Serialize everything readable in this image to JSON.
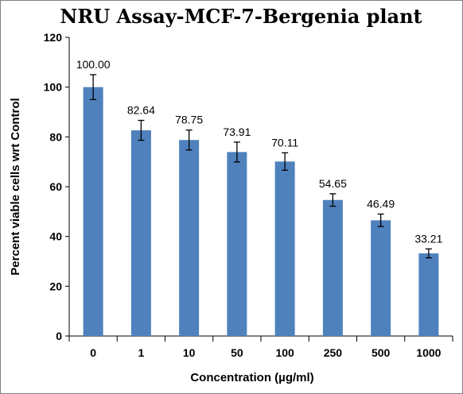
{
  "chart_data": {
    "type": "bar",
    "title": "NRU Assay-MCF-7-Bergenia plant",
    "xlabel": "Concentration (µg/ml)",
    "ylabel": "Percent viable cells wrt Control",
    "categories": [
      "0",
      "1",
      "10",
      "50",
      "100",
      "250",
      "500",
      "1000"
    ],
    "values": [
      100.0,
      82.64,
      78.75,
      73.91,
      70.11,
      54.65,
      46.49,
      33.21
    ],
    "data_labels": [
      "100.00",
      "82.64",
      "78.75",
      "73.91",
      "70.11",
      "54.65",
      "46.49",
      "33.21"
    ],
    "error": [
      5.0,
      4.0,
      4.0,
      4.0,
      3.5,
      2.5,
      2.5,
      1.8
    ],
    "ylim": [
      0,
      120
    ],
    "yticks": [
      0,
      20,
      40,
      60,
      80,
      100,
      120
    ],
    "bar_color": "#4f81bd",
    "grid": false,
    "legend": "none"
  }
}
